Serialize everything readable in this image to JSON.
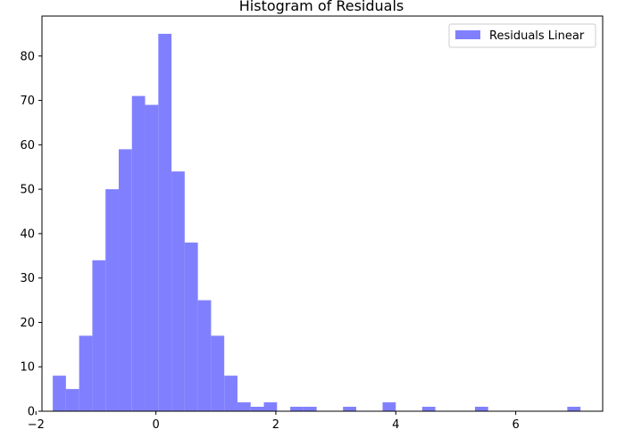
{
  "chart_data": {
    "type": "bar",
    "title": "Histogram of Residuals",
    "xlabel": "",
    "ylabel": "",
    "xlim": [
      -1.9,
      7.45
    ],
    "ylim": [
      0,
      89
    ],
    "xticks": [
      -2,
      0,
      2,
      4,
      6
    ],
    "yticks": [
      0,
      10,
      20,
      30,
      40,
      50,
      60,
      70,
      80
    ],
    "bin_width": 0.22,
    "grid": false,
    "legend_position": "top-right",
    "series": [
      {
        "name": "Residuals Linear",
        "color": "#8080ff",
        "bins": [
          {
            "x0": -1.72,
            "count": 8
          },
          {
            "x0": -1.5,
            "count": 5
          },
          {
            "x0": -1.28,
            "count": 17
          },
          {
            "x0": -1.06,
            "count": 34
          },
          {
            "x0": -0.84,
            "count": 50
          },
          {
            "x0": -0.62,
            "count": 59
          },
          {
            "x0": -0.4,
            "count": 71
          },
          {
            "x0": -0.18,
            "count": 69
          },
          {
            "x0": 0.04,
            "count": 85
          },
          {
            "x0": 0.26,
            "count": 54
          },
          {
            "x0": 0.48,
            "count": 38
          },
          {
            "x0": 0.7,
            "count": 25
          },
          {
            "x0": 0.92,
            "count": 17
          },
          {
            "x0": 1.14,
            "count": 8
          },
          {
            "x0": 1.36,
            "count": 2
          },
          {
            "x0": 1.58,
            "count": 1
          },
          {
            "x0": 1.8,
            "count": 2
          },
          {
            "x0": 2.24,
            "count": 1
          },
          {
            "x0": 2.46,
            "count": 1
          },
          {
            "x0": 3.12,
            "count": 1
          },
          {
            "x0": 3.78,
            "count": 2
          },
          {
            "x0": 4.44,
            "count": 1
          },
          {
            "x0": 5.32,
            "count": 1
          },
          {
            "x0": 6.86,
            "count": 1
          }
        ]
      }
    ]
  }
}
